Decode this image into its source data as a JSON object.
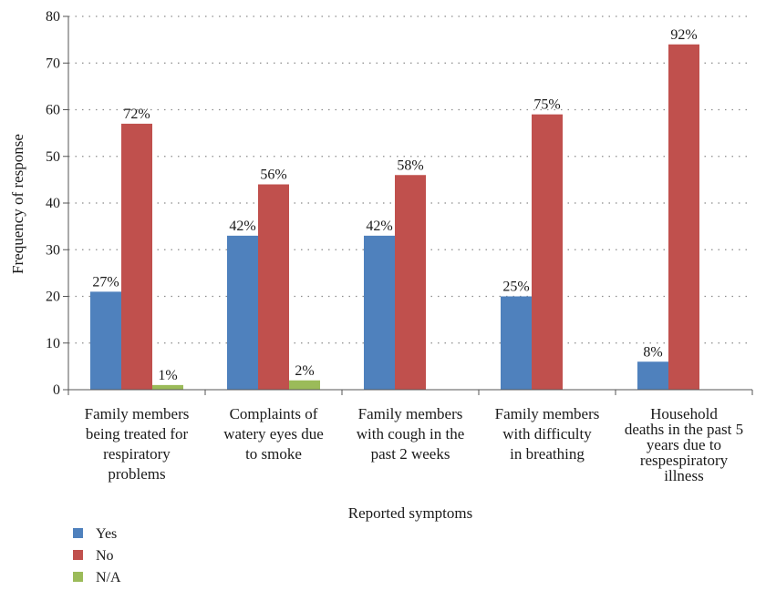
{
  "chart_data": {
    "type": "bar",
    "title": "",
    "xlabel": "Reported symptoms",
    "ylabel": "Frequency of response",
    "ylim": [
      0,
      80
    ],
    "yticks": [
      0,
      10,
      20,
      30,
      40,
      50,
      60,
      70,
      80
    ],
    "grid": "horizontal dotted",
    "legend_position": "bottom-left",
    "categories": [
      [
        "Family members",
        "being treated for",
        "respiratory",
        "problems"
      ],
      [
        "Complaints of",
        "watery eyes due",
        "to smoke"
      ],
      [
        "Family members",
        "with cough in the",
        "past 2 weeks"
      ],
      [
        "Family members",
        "with difficulty",
        "in breathing"
      ],
      [
        "Household",
        "deaths in the past 5",
        "years due to",
        "respespiratory",
        "illness"
      ]
    ],
    "series": [
      {
        "name": "Yes",
        "color": "#4F81BD",
        "values": [
          21,
          33,
          33,
          20,
          6
        ],
        "labels": [
          "27%",
          "42%",
          "42%",
          "25%",
          "8%"
        ]
      },
      {
        "name": "No",
        "color": "#C0504D",
        "values": [
          57,
          44,
          46,
          59,
          74
        ],
        "labels": [
          "72%",
          "56%",
          "58%",
          "75%",
          "92%"
        ]
      },
      {
        "name": "N/A",
        "color": "#9BBB59",
        "values": [
          1,
          2,
          0,
          0,
          0
        ],
        "labels": [
          "1%",
          "2%",
          "",
          "",
          ""
        ]
      }
    ]
  }
}
